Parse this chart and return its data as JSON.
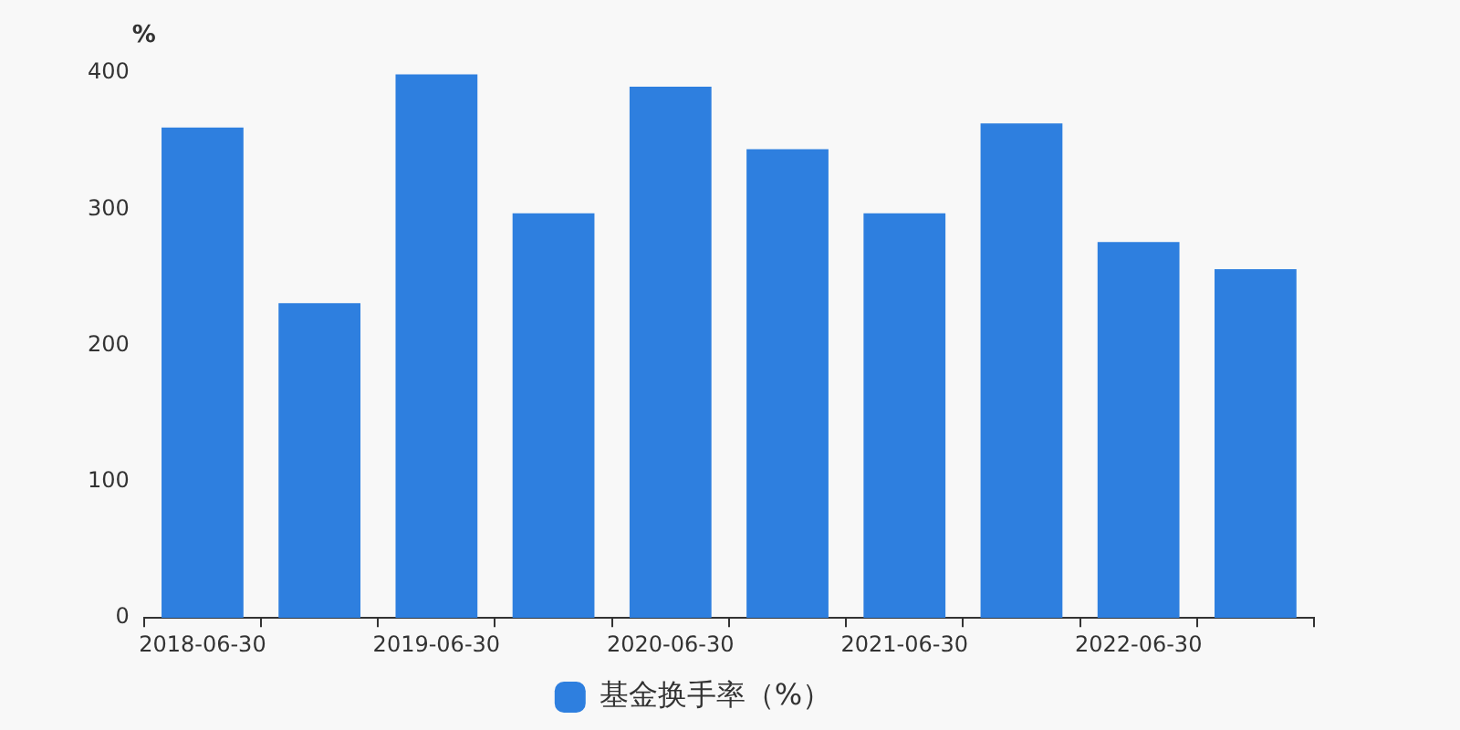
{
  "chart_data": {
    "type": "bar",
    "ylabel": "%",
    "categories": [
      "2018-06-30",
      null,
      "2019-06-30",
      null,
      "2020-06-30",
      null,
      "2021-06-30",
      null,
      "2022-06-30",
      null
    ],
    "series": [
      {
        "name": "基金换手率（%）",
        "color": "#2e7fdf",
        "values": [
          360,
          231,
          399,
          297,
          390,
          344,
          297,
          363,
          276,
          256
        ]
      }
    ],
    "ylim": [
      0,
      400
    ],
    "yticks": [
      0,
      100,
      200,
      300,
      400
    ],
    "grid": false,
    "legend": "bottom"
  }
}
